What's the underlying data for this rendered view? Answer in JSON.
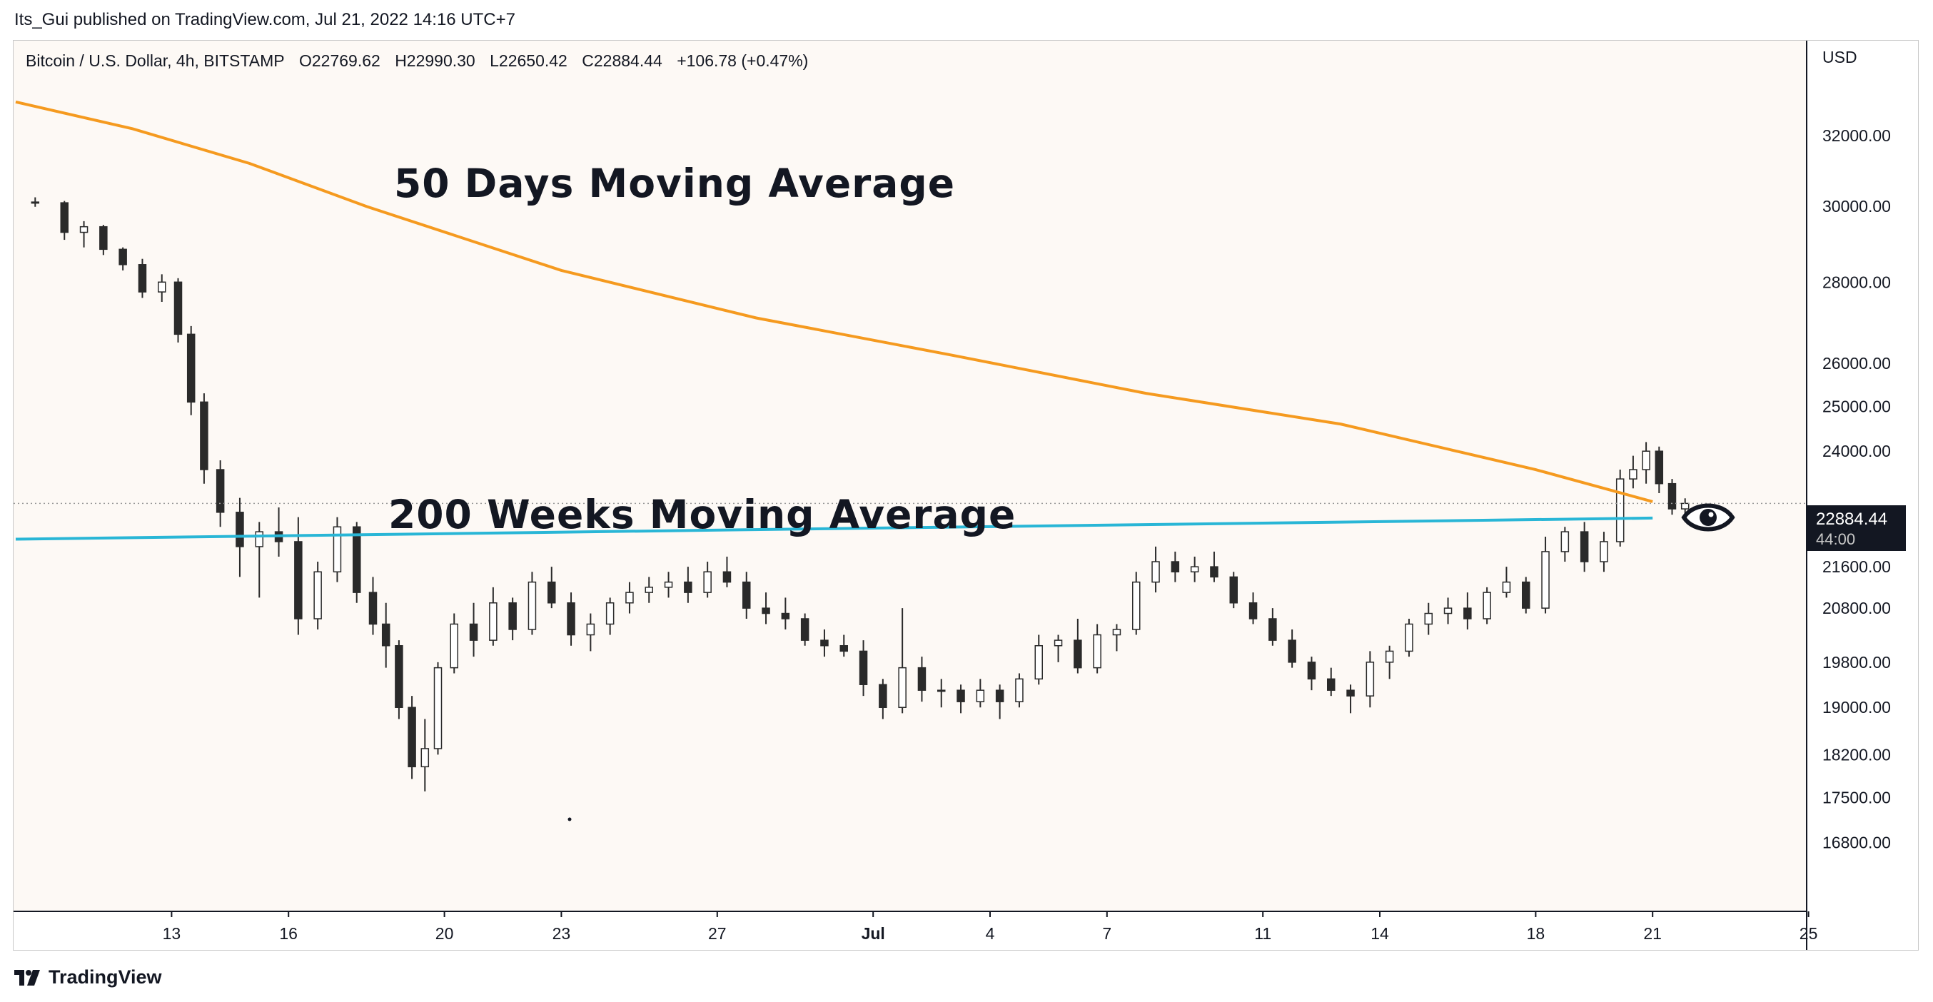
{
  "header": {
    "published": "Its_Gui published on TradingView.com, Jul 21, 2022 14:16 UTC+7"
  },
  "symbol_line": {
    "name": "Bitcoin / U.S. Dollar, 4h, BITSTAMP",
    "open": "O22769.62",
    "high": "H22990.30",
    "low": "L22650.42",
    "close": "C22884.44",
    "change": "+106.78 (+0.47%)"
  },
  "brand": {
    "name": "TradingView"
  },
  "colors": {
    "up_candle": "#ffffff",
    "down_candle": "#2a2a2a",
    "ma50": "#f59a1f",
    "ma200w": "#29b6d6",
    "price_tag_bg": "#131722"
  },
  "price_tag": {
    "price": "22884.44",
    "countdown": "44:00"
  },
  "eye_icon": "eye-icon",
  "chart_data": {
    "type": "candlestick",
    "title": "Bitcoin / U.S. Dollar, 4h, BITSTAMP",
    "yaxis_label": "USD",
    "yaxis_scale": "log",
    "ylim": [
      15900,
      34600
    ],
    "y_ticks": [
      "32000.00",
      "30000.00",
      "28000.00",
      "26000.00",
      "25000.00",
      "24000.00",
      "21600.00",
      "20800.00",
      "19800.00",
      "19000.00",
      "18200.00",
      "17500.00",
      "16800.00"
    ],
    "x_ticks": [
      "13",
      "16",
      "20",
      "23",
      "27",
      "Jul",
      "4",
      "7",
      "11",
      "14",
      "18",
      "21",
      "25"
    ],
    "xlim_days_labels": [
      "Jun 9",
      "Jul 26"
    ],
    "annotations": [
      "50 Days Moving Average",
      "200 Weeks Moving Average"
    ],
    "series": [
      {
        "name": "50 Days Moving Average",
        "kind": "line",
        "points": [
          [
            "Jun 9",
            33000
          ],
          [
            "Jun 12",
            32200
          ],
          [
            "Jun 15",
            31200
          ],
          [
            "Jun 18",
            30000
          ],
          [
            "Jun 23",
            28300
          ],
          [
            "Jun 28",
            27100
          ],
          [
            "Jul 3",
            26200
          ],
          [
            "Jul 8",
            25300
          ],
          [
            "Jul 13",
            24600
          ],
          [
            "Jul 18",
            23600
          ],
          [
            "Jul 21",
            22920
          ]
        ]
      },
      {
        "name": "200 Weeks Moving Average",
        "kind": "line",
        "points": [
          [
            "Jun 9",
            22150
          ],
          [
            "Jul 21",
            22580
          ]
        ]
      },
      {
        "name": "Bitcoin / U.S. Dollar",
        "kind": "candles",
        "ohlc": [
          [
            "Jun 9",
            30120,
            30250,
            29990,
            30100
          ],
          [
            "Jun 10",
            30100,
            30150,
            29100,
            29300
          ],
          [
            "Jun 10",
            29300,
            29600,
            28900,
            29450
          ],
          [
            "Jun 11",
            29450,
            29500,
            28700,
            28850
          ],
          [
            "Jun 11",
            28850,
            28900,
            28300,
            28450
          ],
          [
            "Jun 12",
            28450,
            28600,
            27600,
            27750
          ],
          [
            "Jun 12",
            27750,
            28200,
            27500,
            28000
          ],
          [
            "Jun 13",
            28000,
            28100,
            26500,
            26700
          ],
          [
            "Jun 13",
            26700,
            26900,
            24800,
            25100
          ],
          [
            "Jun 13",
            25100,
            25300,
            23300,
            23600
          ],
          [
            "Jun 14",
            23600,
            23800,
            22400,
            22700
          ],
          [
            "Jun 14",
            22700,
            23000,
            21400,
            22000
          ],
          [
            "Jun 15",
            22000,
            22500,
            21000,
            22300
          ],
          [
            "Jun 15",
            22300,
            22800,
            21800,
            22100
          ],
          [
            "Jun 16",
            22100,
            22600,
            20300,
            20600
          ],
          [
            "Jun 16",
            20600,
            21700,
            20400,
            21500
          ],
          [
            "Jun 17",
            21500,
            22600,
            21300,
            22400
          ],
          [
            "Jun 17",
            22400,
            22500,
            20900,
            21100
          ],
          [
            "Jun 18",
            21100,
            21400,
            20300,
            20500
          ],
          [
            "Jun 18",
            20500,
            20900,
            19700,
            20100
          ],
          [
            "Jun 18",
            20100,
            20200,
            18800,
            19000
          ],
          [
            "Jun 19",
            19000,
            19200,
            17800,
            18000
          ],
          [
            "Jun 19",
            18000,
            18800,
            17600,
            18300
          ],
          [
            "Jun 19",
            18300,
            19800,
            18200,
            19700
          ],
          [
            "Jun 20",
            19700,
            20700,
            19600,
            20500
          ],
          [
            "Jun 20",
            20500,
            20900,
            19900,
            20200
          ],
          [
            "Jun 21",
            20200,
            21200,
            20100,
            20900
          ],
          [
            "Jun 21",
            20900,
            21000,
            20200,
            20400
          ],
          [
            "Jun 22",
            20400,
            21500,
            20300,
            21300
          ],
          [
            "Jun 22",
            21300,
            21600,
            20800,
            20900
          ],
          [
            "Jun 23",
            20900,
            21100,
            20100,
            20300
          ],
          [
            "Jun 23",
            20300,
            20700,
            20000,
            20500
          ],
          [
            "Jun 24",
            20500,
            21000,
            20300,
            20900
          ],
          [
            "Jun 24",
            20900,
            21300,
            20700,
            21100
          ],
          [
            "Jun 25",
            21100,
            21400,
            20900,
            21200
          ],
          [
            "Jun 25",
            21200,
            21500,
            21000,
            21300
          ],
          [
            "Jun 26",
            21300,
            21600,
            20900,
            21100
          ],
          [
            "Jun 26",
            21100,
            21700,
            21000,
            21500
          ],
          [
            "Jun 27",
            21500,
            21800,
            21200,
            21300
          ],
          [
            "Jun 27",
            21300,
            21500,
            20600,
            20800
          ],
          [
            "Jun 28",
            20800,
            21100,
            20500,
            20700
          ],
          [
            "Jun 28",
            20700,
            21000,
            20400,
            20600
          ],
          [
            "Jun 29",
            20600,
            20700,
            20100,
            20200
          ],
          [
            "Jun 29",
            20200,
            20400,
            19900,
            20100
          ],
          [
            "Jun 30",
            20100,
            20300,
            19900,
            20000
          ],
          [
            "Jun 30",
            20000,
            20200,
            19200,
            19400
          ],
          [
            "Jul 1",
            19400,
            19500,
            18800,
            19000
          ],
          [
            "Jul 1",
            19000,
            20800,
            18900,
            19700
          ],
          [
            "Jul 2",
            19700,
            19900,
            19100,
            19300
          ],
          [
            "Jul 2",
            19300,
            19500,
            19000,
            19300
          ],
          [
            "Jul 3",
            19300,
            19400,
            18900,
            19100
          ],
          [
            "Jul 3",
            19100,
            19500,
            19000,
            19300
          ],
          [
            "Jul 4",
            19300,
            19400,
            18800,
            19100
          ],
          [
            "Jul 4",
            19100,
            19600,
            19000,
            19500
          ],
          [
            "Jul 5",
            19500,
            20300,
            19400,
            20100
          ],
          [
            "Jul 5",
            20100,
            20300,
            19800,
            20200
          ],
          [
            "Jul 6",
            20200,
            20600,
            19600,
            19700
          ],
          [
            "Jul 6",
            19700,
            20500,
            19600,
            20300
          ],
          [
            "Jul 7",
            20300,
            20500,
            20000,
            20400
          ],
          [
            "Jul 7",
            20400,
            21500,
            20300,
            21300
          ],
          [
            "Jul 8",
            21300,
            22000,
            21100,
            21700
          ],
          [
            "Jul 8",
            21700,
            21900,
            21300,
            21500
          ],
          [
            "Jul 9",
            21500,
            21800,
            21300,
            21600
          ],
          [
            "Jul 9",
            21600,
            21900,
            21300,
            21400
          ],
          [
            "Jul 10",
            21400,
            21500,
            20800,
            20900
          ],
          [
            "Jul 10",
            20900,
            21100,
            20500,
            20600
          ],
          [
            "Jul 11",
            20600,
            20800,
            20100,
            20200
          ],
          [
            "Jul 11",
            20200,
            20400,
            19700,
            19800
          ],
          [
            "Jul 12",
            19800,
            19900,
            19300,
            19500
          ],
          [
            "Jul 12",
            19500,
            19700,
            19200,
            19300
          ],
          [
            "Jul 13",
            19300,
            19400,
            18900,
            19200
          ],
          [
            "Jul 13",
            19200,
            20000,
            19000,
            19800
          ],
          [
            "Jul 14",
            19800,
            20100,
            19500,
            20000
          ],
          [
            "Jul 14",
            20000,
            20600,
            19900,
            20500
          ],
          [
            "Jul 15",
            20500,
            20900,
            20300,
            20700
          ],
          [
            "Jul 15",
            20700,
            21000,
            20500,
            20800
          ],
          [
            "Jul 16",
            20800,
            21100,
            20400,
            20600
          ],
          [
            "Jul 16",
            20600,
            21200,
            20500,
            21100
          ],
          [
            "Jul 17",
            21100,
            21600,
            21000,
            21300
          ],
          [
            "Jul 17",
            21300,
            21400,
            20700,
            20800
          ],
          [
            "Jul 18",
            20800,
            22200,
            20700,
            21900
          ],
          [
            "Jul 18",
            21900,
            22400,
            21700,
            22300
          ],
          [
            "Jul 19",
            22300,
            22500,
            21500,
            21700
          ],
          [
            "Jul 19",
            21700,
            22300,
            21500,
            22100
          ],
          [
            "Jul 20",
            22100,
            23600,
            22000,
            23400
          ],
          [
            "Jul 20",
            23400,
            23900,
            23200,
            23600
          ],
          [
            "Jul 20",
            23600,
            24200,
            23300,
            24000
          ],
          [
            "Jul 21",
            24000,
            24100,
            23100,
            23300
          ],
          [
            "Jul 21",
            23300,
            23400,
            22650,
            22770
          ],
          [
            "Jul 21",
            22770,
            22990,
            22650,
            22884
          ]
        ]
      }
    ],
    "last_price": 22884.44
  }
}
